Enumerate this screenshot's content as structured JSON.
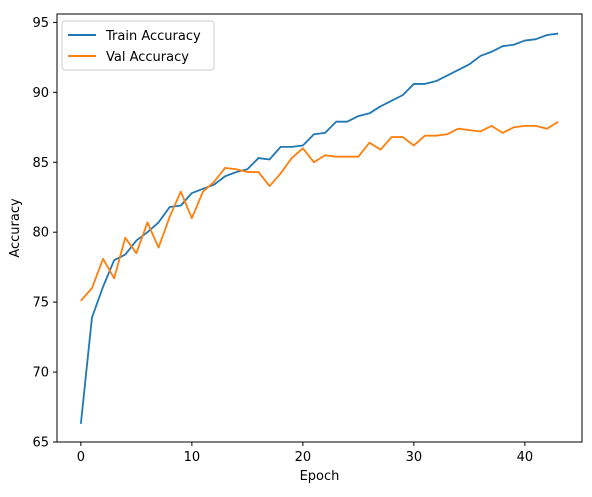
{
  "chart_data": {
    "type": "line",
    "xlabel": "Epoch",
    "ylabel": "Accuracy",
    "xlim": [
      -2.15,
      45.15
    ],
    "ylim": [
      65,
      95.6
    ],
    "xticks": [
      0,
      10,
      20,
      30,
      40
    ],
    "yticks": [
      65,
      70,
      75,
      80,
      85,
      90,
      95
    ],
    "grid": false,
    "legend_position": "top-left",
    "x": [
      0,
      1,
      2,
      3,
      4,
      5,
      6,
      7,
      8,
      9,
      10,
      11,
      12,
      13,
      14,
      15,
      16,
      17,
      18,
      19,
      20,
      21,
      22,
      23,
      24,
      25,
      26,
      27,
      28,
      29,
      30,
      31,
      32,
      33,
      34,
      35,
      36,
      37,
      38,
      39,
      40,
      41,
      42,
      43
    ],
    "series": [
      {
        "name": "Train Accuracy",
        "color": "#1f77b4",
        "values": [
          66.3,
          73.9,
          76.1,
          78.0,
          78.4,
          79.4,
          80.0,
          80.7,
          81.8,
          81.9,
          82.8,
          83.1,
          83.4,
          84.0,
          84.3,
          84.5,
          85.3,
          85.2,
          86.1,
          86.1,
          86.2,
          87.0,
          87.1,
          87.9,
          87.9,
          88.3,
          88.5,
          89.0,
          89.4,
          89.8,
          90.6,
          90.6,
          90.8,
          91.2,
          91.6,
          92.0,
          92.6,
          92.9,
          93.3,
          93.4,
          93.7,
          93.8,
          94.1,
          94.2
        ]
      },
      {
        "name": "Val Accuracy",
        "color": "#ff7f0e",
        "values": [
          75.1,
          76.0,
          78.1,
          76.7,
          79.6,
          78.5,
          80.7,
          78.9,
          81.1,
          82.9,
          81.0,
          82.9,
          83.6,
          84.6,
          84.5,
          84.3,
          84.3,
          83.3,
          84.2,
          85.3,
          86.0,
          85.0,
          85.5,
          85.4,
          85.4,
          85.4,
          86.4,
          85.9,
          86.8,
          86.8,
          86.2,
          86.9,
          86.9,
          87.0,
          87.4,
          87.3,
          87.2,
          87.6,
          87.1,
          87.5,
          87.6,
          87.6,
          87.4,
          87.9
        ]
      }
    ]
  }
}
